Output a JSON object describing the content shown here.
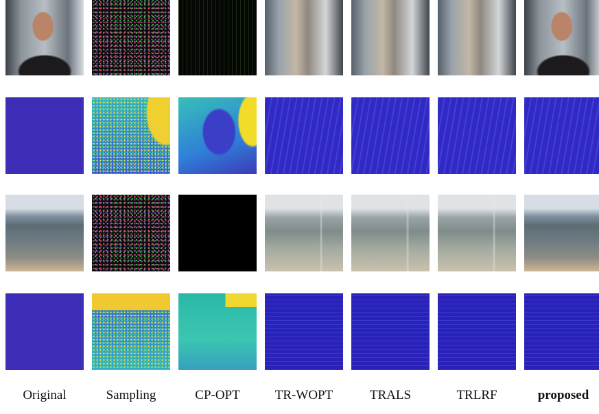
{
  "columns": [
    "Original",
    "Sampling",
    "CP-OPT",
    "TR-WOPT",
    "TRALS",
    "TRLRF",
    "proposed"
  ]
}
